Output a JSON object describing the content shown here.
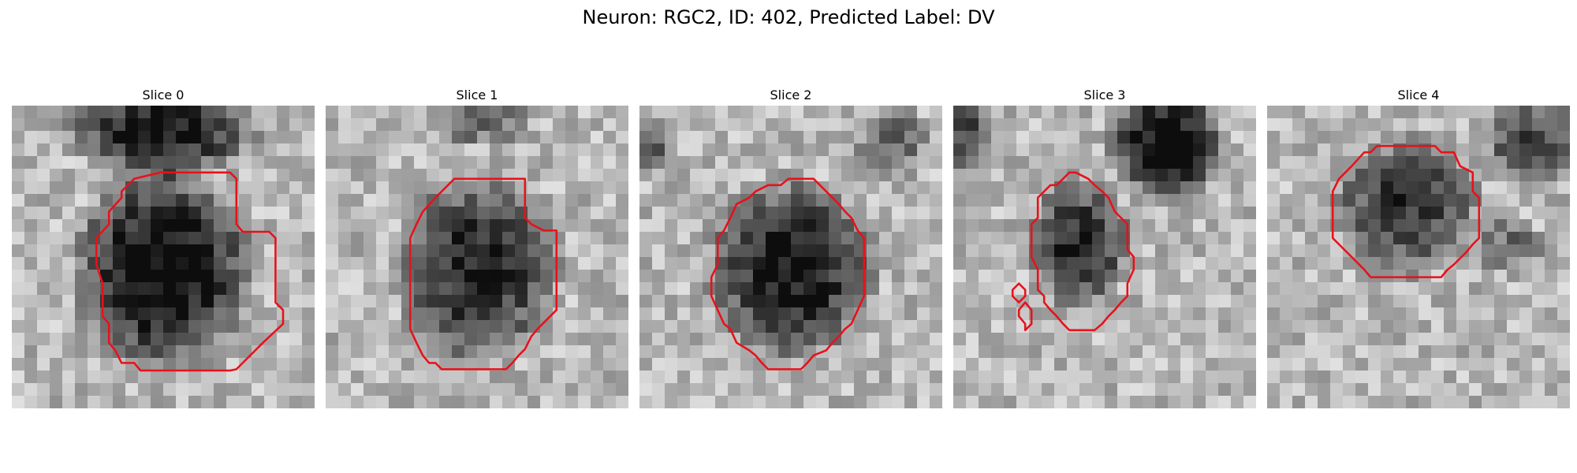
{
  "figure": {
    "title": "Neuron: RGC2, ID: 402, Predicted Label: DV"
  },
  "colors": {
    "contour": "#e8111a"
  },
  "panels": [
    {
      "title": "Slice 0",
      "content": "grayscale EM image patch with dark cell body",
      "contour": [
        [
          12.8,
          5.3
        ],
        [
          17.3,
          5.3
        ],
        [
          17.8,
          5.8
        ],
        [
          17.8,
          9.4
        ],
        [
          18.3,
          10
        ],
        [
          20.4,
          10
        ],
        [
          20.9,
          10.5
        ],
        [
          20.9,
          15.6
        ],
        [
          21.5,
          16.2
        ],
        [
          21.5,
          17.3
        ],
        [
          19.9,
          18.8
        ],
        [
          18.3,
          20.4
        ],
        [
          17.8,
          20.9
        ],
        [
          17.3,
          21
        ],
        [
          10.2,
          21
        ],
        [
          9.7,
          20.4
        ],
        [
          8.7,
          20.4
        ],
        [
          8.2,
          19.4
        ],
        [
          7.7,
          18.8
        ],
        [
          7.7,
          17.3
        ],
        [
          7.2,
          16.7
        ],
        [
          7.2,
          14.1
        ],
        [
          6.7,
          12.6
        ],
        [
          6.7,
          10.5
        ],
        [
          7.7,
          9.4
        ],
        [
          7.7,
          8.4
        ],
        [
          8.7,
          7.3
        ],
        [
          8.7,
          6.8
        ],
        [
          9.7,
          5.8
        ],
        [
          11.8,
          5.3
        ]
      ],
      "color_base": "#888"
    },
    {
      "title": "Slice 1",
      "content": "grayscale EM image patch with dark cell body",
      "contour": [
        [
          10.7,
          5.8
        ],
        [
          15.8,
          5.8
        ],
        [
          15.8,
          8.9
        ],
        [
          16.3,
          9.4
        ],
        [
          17.3,
          9.9
        ],
        [
          18.3,
          9.9
        ],
        [
          18.3,
          16.2
        ],
        [
          17.8,
          16.7
        ],
        [
          16.8,
          17.7
        ],
        [
          16.3,
          18.3
        ],
        [
          15.8,
          19.3
        ],
        [
          15.3,
          19.8
        ],
        [
          14.8,
          20.4
        ],
        [
          14.3,
          20.9
        ],
        [
          9.2,
          20.9
        ],
        [
          8.7,
          20.4
        ],
        [
          8.2,
          20.4
        ],
        [
          7.7,
          19.8
        ],
        [
          7.2,
          18.8
        ],
        [
          6.7,
          17.7
        ],
        [
          6.7,
          10.5
        ],
        [
          7.2,
          9.4
        ],
        [
          7.7,
          8.4
        ],
        [
          8.7,
          7.3
        ],
        [
          9.7,
          6.3
        ],
        [
          10.2,
          5.8
        ]
      ],
      "color_base": "#888"
    },
    {
      "title": "Slice 2",
      "content": "grayscale EM image patch with dark cell body",
      "contour": [
        [
          11.8,
          5.8
        ],
        [
          13.8,
          5.8
        ],
        [
          14.3,
          6.3
        ],
        [
          14.8,
          6.8
        ],
        [
          15.8,
          7.8
        ],
        [
          16.3,
          8.4
        ],
        [
          16.8,
          8.9
        ],
        [
          17.3,
          9.9
        ],
        [
          17.8,
          10.5
        ],
        [
          17.8,
          15.1
        ],
        [
          17.3,
          16.2
        ],
        [
          16.8,
          17.3
        ],
        [
          16.3,
          17.7
        ],
        [
          15.8,
          18.3
        ],
        [
          15.3,
          18.8
        ],
        [
          14.8,
          19.4
        ],
        [
          13.8,
          19.8
        ],
        [
          13.3,
          20.4
        ],
        [
          12.8,
          20.9
        ],
        [
          10.2,
          20.9
        ],
        [
          9.7,
          20.4
        ],
        [
          9.2,
          19.8
        ],
        [
          8.7,
          19.4
        ],
        [
          7.7,
          18.8
        ],
        [
          7.2,
          17.7
        ],
        [
          6.7,
          17.3
        ],
        [
          6.2,
          16.2
        ],
        [
          5.7,
          15.1
        ],
        [
          5.7,
          13.6
        ],
        [
          6.2,
          12.6
        ],
        [
          6.2,
          10.5
        ],
        [
          6.7,
          9.9
        ],
        [
          7.2,
          8.9
        ],
        [
          7.7,
          7.8
        ],
        [
          8.7,
          7.3
        ],
        [
          9.2,
          6.8
        ],
        [
          10.2,
          6.3
        ],
        [
          11.2,
          6.3
        ]
      ],
      "color_base": "#888"
    },
    {
      "title": "Slice 3",
      "content": "grayscale EM image patch with dark cell body",
      "contour": [
        [
          9.7,
          5.3
        ],
        [
          10.7,
          5.8
        ],
        [
          11.2,
          6.3
        ],
        [
          11.8,
          6.8
        ],
        [
          12.3,
          7.3
        ],
        [
          12.8,
          8.4
        ],
        [
          13.8,
          9.4
        ],
        [
          13.8,
          11.4
        ],
        [
          14.3,
          12
        ],
        [
          14.3,
          13
        ],
        [
          13.8,
          14.1
        ],
        [
          13.8,
          15.1
        ],
        [
          13.3,
          15.6
        ],
        [
          12.8,
          16.2
        ],
        [
          12.3,
          16.7
        ],
        [
          11.8,
          17.3
        ],
        [
          11.2,
          17.8
        ],
        [
          9.2,
          17.8
        ],
        [
          8.7,
          17.3
        ],
        [
          8.2,
          16.7
        ],
        [
          7.7,
          16.2
        ],
        [
          7.2,
          15.6
        ],
        [
          7.2,
          15.1
        ],
        [
          6.7,
          14.6
        ],
        [
          6.7,
          13
        ],
        [
          6.2,
          12
        ],
        [
          6.2,
          9.4
        ],
        [
          6.7,
          8.9
        ],
        [
          6.7,
          7.3
        ],
        [
          7.2,
          6.8
        ],
        [
          7.7,
          6.3
        ],
        [
          8.2,
          6.3
        ],
        [
          8.7,
          5.8
        ],
        [
          9.2,
          5.3
        ]
      ],
      "contour_extra": [
        [
          [
            5.2,
            14.1
          ],
          [
            5.7,
            14.6
          ],
          [
            5.7,
            15.1
          ],
          [
            5.2,
            15.6
          ],
          [
            4.7,
            15.1
          ],
          [
            4.7,
            14.6
          ]
        ],
        [
          [
            5.7,
            15.6
          ],
          [
            6.2,
            16.2
          ],
          [
            6.2,
            17.3
          ],
          [
            5.7,
            17.8
          ],
          [
            5.7,
            17.3
          ],
          [
            5.2,
            16.7
          ],
          [
            5.2,
            16.2
          ]
        ]
      ],
      "color_base": "#888"
    },
    {
      "title": "Slice 4",
      "content": "grayscale EM image patch with dark cell body",
      "contour": [
        [
          11.2,
          3.2
        ],
        [
          13.3,
          3.2
        ],
        [
          13.8,
          3.7
        ],
        [
          14.8,
          3.7
        ],
        [
          15.3,
          4.8
        ],
        [
          16.3,
          5.3
        ],
        [
          16.3,
          6.8
        ],
        [
          16.8,
          7.3
        ],
        [
          16.8,
          10.5
        ],
        [
          16.3,
          11
        ],
        [
          15.8,
          11.6
        ],
        [
          14.8,
          12.6
        ],
        [
          14.3,
          13
        ],
        [
          13.8,
          13.6
        ],
        [
          8.2,
          13.6
        ],
        [
          7.7,
          13
        ],
        [
          6.7,
          12
        ],
        [
          5.7,
          11
        ],
        [
          5.2,
          10.5
        ],
        [
          5.2,
          6.8
        ],
        [
          5.7,
          5.8
        ],
        [
          6.7,
          4.8
        ],
        [
          7.7,
          3.7
        ],
        [
          8.2,
          3.7
        ],
        [
          8.7,
          3.2
        ]
      ],
      "color_base": "#888"
    }
  ]
}
